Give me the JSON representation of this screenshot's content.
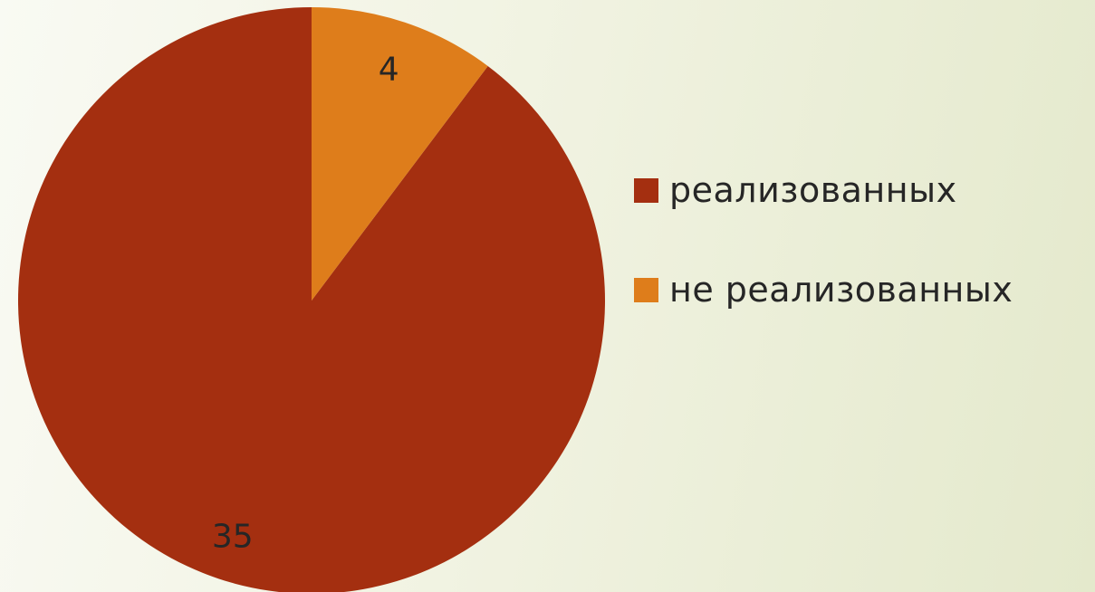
{
  "chart_data": {
    "type": "pie",
    "title": "",
    "categories": [
      "реализованных",
      "не реализованных"
    ],
    "values": [
      35,
      4
    ],
    "colors": [
      "#a42f10",
      "#de7d1b"
    ],
    "data_labels": [
      "35",
      "4"
    ],
    "start_angle": "12 o'clock",
    "direction": "counter-clockwise",
    "legend": "right"
  },
  "legend": {
    "items": [
      {
        "label": "реализованных",
        "color": "#a42f10"
      },
      {
        "label": "не реализованных",
        "color": "#de7d1b"
      }
    ]
  }
}
